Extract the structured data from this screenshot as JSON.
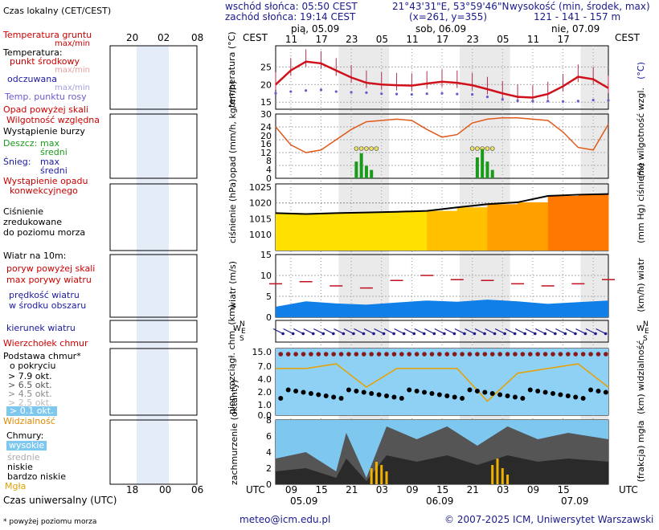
{
  "header": {
    "sunrise": "wschód słońca: 05:50 CEST",
    "sunset": "zachód słońca: 19:14 CEST",
    "coords": "21°43'31\"E, 53°59'46\"N",
    "grid": "(x=261,  y=355)",
    "elev_label": "wysokość (min, środek, max)",
    "elev_vals": "121 - 141 - 157 m"
  },
  "legend": {
    "time_zone": "Czas lokalny (CET/CEST)",
    "soil_temp": "Temperatura gruntu",
    "soil_temp_sub": "max/min",
    "temperature": "Temperatura:",
    "mid_point": "punkt środkowy",
    "max_min": "max/min",
    "felt": "odczuwana",
    "felt_sub": "max/min",
    "dew": "Temp. punktu rosy",
    "precip_above": "Opad powyżej skali",
    "humidity": "Wilgotność względna",
    "storm": "Wystąpienie burzy",
    "rain": "Deszcz:",
    "rain_max": "max",
    "rain_mid": "średni",
    "snow": "Śnieg:",
    "snow_max": "max",
    "snow_mid": "średni",
    "precip_occ1": "Wystąpienie opadu",
    "precip_occ2": "konwekcyjnego",
    "pressure1": "Ciśnienie",
    "pressure2": "zredukowane",
    "pressure3": "do poziomu morza",
    "wind10": "Wiatr na 10m:",
    "gust_above": "poryw powyżej skali",
    "max_gust": "max porywy wiatru",
    "avg_wind1": "prędkość wiatru",
    "avg_wind2": "w środku obszaru",
    "wind_dir": "kierunek wiatru",
    "cloud_top": "Wierzchołek chmur",
    "cloud_base1": "Podstawa chmur*",
    "cloud_base2": "o pokryciu",
    "okt1": "> 7.9 okt.",
    "okt2": "> 6.5 okt.",
    "okt3": "> 4.5 okt.",
    "okt4": "> 2.5 okt.",
    "okt5": "> 0.1 okt.",
    "visibility": "Widzialność",
    "clouds": "Chmury:",
    "cl_high": "wysokie",
    "cl_mid": "średnie",
    "cl_low": "niskie",
    "cl_vlow": "bardzo niskie",
    "fog": "Mgła",
    "utc_label": "Czas uniwersalny (UTC)",
    "footnote": "* powyżej poziomu morza"
  },
  "units": {
    "temp": "temperatura (°C)",
    "temp_r": "(°C)",
    "precip": "opad (mm/h, kg/m²/h)",
    "humid": "(%) wilgotność wzgl.",
    "press": "ciśnienie (hPa)",
    "press_r": "(mm Hg) ciśnienie",
    "wind": "wiatr (m/s)",
    "wind_r": "(km/h) wiatr",
    "cloud": "pion. rozciągł. chm. (km)",
    "vis_r": "(km) widzialność",
    "cover": "zachmurzenie (oktanty)",
    "fog_r": "(frakcja) mgła",
    "cest": "CEST",
    "utc": "UTC"
  },
  "axis": {
    "days": [
      "pią, 05.09",
      "sob, 06.09",
      "nie, 07.09"
    ],
    "local_hours": [
      "11",
      "17",
      "23",
      "05",
      "11",
      "17",
      "23",
      "05",
      "11",
      "17"
    ],
    "utc_hours": [
      "09",
      "15",
      "21",
      "03",
      "09",
      "15",
      "21",
      "03",
      "09",
      "15"
    ],
    "utc_dates": [
      "05.09",
      "06.09",
      "07.09"
    ],
    "left_top_hours": [
      "20",
      "02",
      "08"
    ],
    "left_bot_hours": [
      "18",
      "00",
      "06"
    ],
    "compass_n": "N",
    "compass_w": "W",
    "compass_e": "E",
    "compass_s": "S"
  },
  "footer": {
    "email": "meteo@icm.edu.pl",
    "copyright": "© 2007-2025 ICM, Uniwersytet Warszawski"
  },
  "colors": {
    "temp": "#d0101a",
    "dew": "#6a5acd",
    "humid": "#e05a1a",
    "rain": "#1a9a1a",
    "wind": "#1060e0",
    "night": "#dcdcdc"
  },
  "chart_data": [
    {
      "type": "line",
      "title": "temperatura",
      "ylabel": "(°C)",
      "ylim": [
        13,
        31
      ],
      "x_hours_utc": [
        6,
        9,
        12,
        15,
        18,
        21,
        24,
        27,
        30,
        33,
        36,
        39,
        42,
        45,
        48,
        51,
        54,
        57,
        60,
        63,
        66,
        69,
        72
      ],
      "series": [
        {
          "name": "punkt środkowy",
          "values": [
            20,
            24,
            26.5,
            26,
            24,
            22,
            20.5,
            20,
            19.8,
            19.7,
            20.3,
            20.8,
            20.5,
            19.8,
            18.7,
            17.5,
            16.5,
            16.3,
            17.3,
            19.5,
            22.2,
            21.5,
            19
          ]
        },
        {
          "name": "temp. punktu rosy",
          "values": [
            17.5,
            18,
            18.3,
            18.5,
            18,
            17.8,
            17.7,
            17.4,
            17.3,
            17.2,
            17.4,
            17.5,
            17.3,
            17.2,
            16.5,
            15.8,
            15.4,
            15.3,
            15.3,
            15.2,
            15.3,
            15.6,
            15.5
          ]
        }
      ]
    },
    {
      "type": "bar",
      "title": "opad i wilgotność",
      "ylim_precip": [
        0,
        30
      ],
      "ylim_humidity": [
        50,
        100
      ],
      "humidity_series": {
        "name": "wilgotność względna",
        "x_hours_utc": [
          6,
          9,
          12,
          15,
          18,
          21,
          24,
          27,
          30,
          33,
          36,
          39,
          42,
          45,
          48,
          51,
          54,
          57,
          60,
          63,
          66,
          69,
          72
        ],
        "values": [
          90,
          76,
          70,
          72,
          80,
          88,
          94,
          95,
          96,
          95,
          88,
          82,
          84,
          93,
          96,
          97,
          97,
          96,
          95,
          86,
          74,
          72,
          92
        ]
      },
      "storm_x_hours_utc": [
        22,
        23,
        24,
        25,
        26,
        45,
        46,
        47,
        48,
        49
      ]
    },
    {
      "type": "area",
      "title": "ciśnienie",
      "ylabel": "(hPa)",
      "ylim": [
        1005,
        1026
      ],
      "x_hours_utc": [
        6,
        12,
        18,
        24,
        30,
        36,
        42,
        48,
        54,
        60,
        66,
        72
      ],
      "values": [
        1016.8,
        1016.5,
        1016.8,
        1017,
        1017.2,
        1017.5,
        1018.6,
        1019.6,
        1020.2,
        1022.2,
        1022.6,
        1022.8
      ]
    },
    {
      "type": "area",
      "title": "wiatr",
      "ylabel": "(m/s)",
      "ylim": [
        0,
        15
      ],
      "x_hours_utc": [
        6,
        12,
        18,
        24,
        30,
        36,
        42,
        48,
        54,
        60,
        66,
        72
      ],
      "series": [
        {
          "name": "prędkość wiatru",
          "values": [
            2.5,
            3.8,
            3.3,
            3,
            3.5,
            4,
            3.7,
            4.2,
            3.8,
            3.2,
            3.6,
            4
          ]
        },
        {
          "name": "max porywy",
          "values": [
            8,
            8.5,
            7.5,
            7,
            8.8,
            10,
            9,
            8.8,
            8,
            7.5,
            8,
            9
          ]
        }
      ]
    },
    {
      "type": "scatter",
      "title": "chmury i widzialność",
      "ylim_km": [
        0,
        15
      ],
      "ylim_vis": [
        0,
        100
      ],
      "visibility": {
        "x_hours_utc": [
          6,
          12,
          18,
          24,
          30,
          36,
          42,
          48,
          54,
          60,
          66,
          72
        ],
        "values": [
          20,
          20,
          22,
          12,
          20,
          20,
          20,
          6,
          18,
          20,
          22,
          12
        ]
      }
    },
    {
      "type": "area",
      "title": "zachmurzenie",
      "ylabel": "(oktanty)",
      "ylim": [
        0,
        8
      ]
    }
  ]
}
